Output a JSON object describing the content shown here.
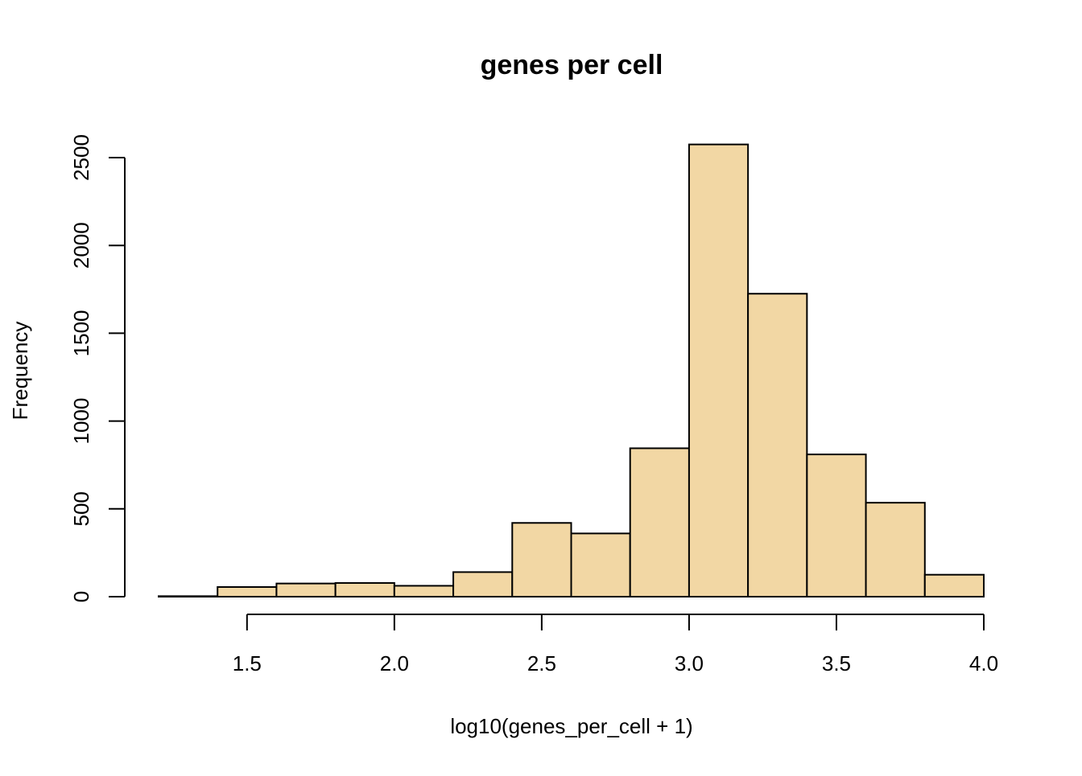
{
  "chart_data": {
    "type": "bar",
    "title": "genes per cell",
    "xlabel": "log10(genes_per_cell + 1)",
    "ylabel": "Frequency",
    "bar_color": "#F2D7A4",
    "edge_color": "#000000",
    "xlim": [
      1.2,
      4.0
    ],
    "ylim": [
      0,
      2500
    ],
    "x_ticks": [
      "1.5",
      "2.0",
      "2.5",
      "3.0",
      "3.5",
      "4.0"
    ],
    "y_ticks": [
      "0",
      "500",
      "1000",
      "1500",
      "2000",
      "2500"
    ],
    "bins": [
      {
        "x0": 1.2,
        "x1": 1.4,
        "count": 3
      },
      {
        "x0": 1.4,
        "x1": 1.6,
        "count": 55
      },
      {
        "x0": 1.6,
        "x1": 1.8,
        "count": 75
      },
      {
        "x0": 1.8,
        "x1": 2.0,
        "count": 78
      },
      {
        "x0": 2.0,
        "x1": 2.2,
        "count": 62
      },
      {
        "x0": 2.2,
        "x1": 2.4,
        "count": 140
      },
      {
        "x0": 2.4,
        "x1": 2.6,
        "count": 420
      },
      {
        "x0": 2.6,
        "x1": 2.8,
        "count": 360
      },
      {
        "x0": 2.8,
        "x1": 3.0,
        "count": 845
      },
      {
        "x0": 3.0,
        "x1": 3.2,
        "count": 2575
      },
      {
        "x0": 3.2,
        "x1": 3.4,
        "count": 1725
      },
      {
        "x0": 3.4,
        "x1": 3.6,
        "count": 810
      },
      {
        "x0": 3.6,
        "x1": 3.8,
        "count": 535
      },
      {
        "x0": 3.8,
        "x1": 4.0,
        "count": 125
      }
    ],
    "grid": false,
    "legend": "none"
  }
}
